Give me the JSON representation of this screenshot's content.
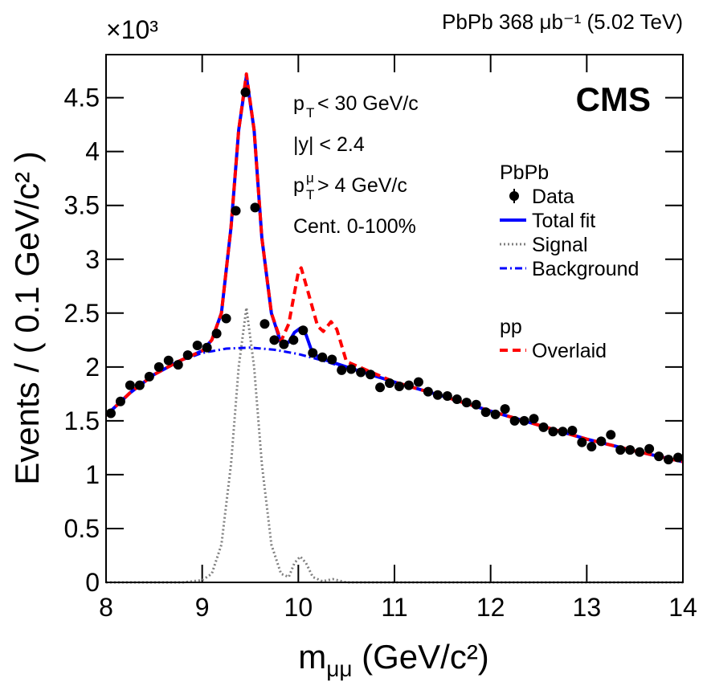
{
  "chart_data": {
    "type": "line",
    "y_multiplier": "×10³",
    "lumi_label": "PbPb 368 μb⁻¹ (5.02 TeV)",
    "experiment": "CMS",
    "ylabel": "Events / ( 0.1 GeV/c² )",
    "xlabel": {
      "main": "m",
      "sub": "μμ",
      "unit": " (GeV/c²)"
    },
    "annotations": [
      {
        "main": "p",
        "sub": "T",
        "rest": " < 30 GeV/c"
      },
      {
        "main": "|y| < 2.4"
      },
      {
        "main": "p",
        "sup": "μ",
        "sub": "T",
        "rest": " > 4 GeV/c"
      },
      {
        "main": "Cent. 0-100%"
      }
    ],
    "xlim": [
      8,
      14
    ],
    "xticks": [
      8,
      9,
      10,
      11,
      12,
      13,
      14
    ],
    "ylim": [
      0,
      4.9
    ],
    "yticks": [
      0,
      0.5,
      1,
      1.5,
      2,
      2.5,
      3,
      3.5,
      4,
      4.5
    ],
    "series": [
      {
        "name": "Data",
        "group": "PbPb",
        "kind": "points",
        "color": "#000000",
        "x": [
          8.05,
          8.15,
          8.25,
          8.35,
          8.45,
          8.55,
          8.65,
          8.75,
          8.85,
          8.95,
          9.05,
          9.15,
          9.25,
          9.35,
          9.45,
          9.55,
          9.65,
          9.75,
          9.85,
          9.95,
          10.05,
          10.15,
          10.25,
          10.35,
          10.45,
          10.55,
          10.65,
          10.75,
          10.85,
          10.95,
          11.05,
          11.15,
          11.25,
          11.35,
          11.45,
          11.55,
          11.65,
          11.75,
          11.85,
          11.95,
          12.05,
          12.15,
          12.25,
          12.35,
          12.45,
          12.55,
          12.65,
          12.75,
          12.85,
          12.95,
          13.05,
          13.15,
          13.25,
          13.35,
          13.45,
          13.55,
          13.65,
          13.75,
          13.85,
          13.95
        ],
        "values": [
          1.57,
          1.68,
          1.83,
          1.83,
          1.91,
          2.0,
          2.06,
          2.02,
          2.11,
          2.2,
          2.18,
          2.31,
          2.45,
          3.45,
          4.55,
          3.48,
          2.4,
          2.25,
          2.21,
          2.25,
          2.34,
          2.13,
          2.09,
          2.07,
          1.97,
          1.98,
          1.95,
          1.93,
          1.81,
          1.85,
          1.82,
          1.83,
          1.86,
          1.77,
          1.74,
          1.73,
          1.7,
          1.67,
          1.65,
          1.58,
          1.56,
          1.61,
          1.5,
          1.5,
          1.52,
          1.44,
          1.4,
          1.4,
          1.41,
          1.3,
          1.26,
          1.31,
          1.37,
          1.23,
          1.23,
          1.21,
          1.24,
          1.17,
          1.14,
          1.16
        ]
      },
      {
        "name": "Total fit",
        "group": "PbPb",
        "kind": "solid",
        "color": "#0000ff",
        "x": [
          8.0,
          8.25,
          8.5,
          8.75,
          9.0,
          9.1,
          9.2,
          9.3,
          9.38,
          9.46,
          9.54,
          9.62,
          9.72,
          9.82,
          9.9,
          9.96,
          10.02,
          10.08,
          10.15,
          10.3,
          10.5,
          11,
          11.5,
          12,
          12.5,
          13,
          13.5,
          14
        ],
        "values": [
          1.55,
          1.76,
          1.93,
          2.05,
          2.15,
          2.25,
          2.5,
          3.3,
          4.2,
          4.7,
          4.2,
          3.2,
          2.5,
          2.22,
          2.23,
          2.32,
          2.36,
          2.3,
          2.12,
          2.06,
          2.0,
          1.86,
          1.73,
          1.59,
          1.46,
          1.33,
          1.22,
          1.12
        ]
      },
      {
        "name": "Signal",
        "group": "PbPb",
        "kind": "dotted",
        "color": "#808080",
        "x": [
          8.0,
          8.8,
          9.0,
          9.1,
          9.2,
          9.3,
          9.38,
          9.46,
          9.54,
          9.62,
          9.72,
          9.82,
          9.9,
          9.96,
          10.02,
          10.08,
          10.15,
          10.25,
          10.36,
          10.5,
          14
        ],
        "values": [
          0,
          0,
          0.02,
          0.08,
          0.35,
          1.1,
          2.0,
          2.55,
          2.0,
          1.1,
          0.35,
          0.08,
          0.05,
          0.18,
          0.24,
          0.18,
          0.05,
          0.01,
          0.03,
          0,
          0
        ]
      },
      {
        "name": "Background",
        "group": "PbPb",
        "kind": "dashdot",
        "color": "#0000ff",
        "x": [
          8.0,
          8.25,
          8.5,
          8.75,
          9.0,
          9.25,
          9.5,
          9.75,
          10.0,
          10.25,
          10.5,
          11,
          11.5,
          12,
          12.5,
          13,
          13.5,
          14
        ],
        "values": [
          1.55,
          1.76,
          1.93,
          2.05,
          2.13,
          2.17,
          2.18,
          2.16,
          2.12,
          2.06,
          1.99,
          1.86,
          1.73,
          1.59,
          1.46,
          1.33,
          1.22,
          1.12
        ]
      },
      {
        "name": "Overlaid",
        "group": "pp",
        "kind": "dashed",
        "color": "#ff0000",
        "x": [
          8.0,
          8.25,
          8.5,
          8.75,
          9.0,
          9.1,
          9.2,
          9.3,
          9.38,
          9.46,
          9.54,
          9.62,
          9.72,
          9.82,
          9.9,
          10.0,
          10.03,
          10.1,
          10.2,
          10.26,
          10.34,
          10.4,
          10.5,
          11,
          11.5,
          12,
          12.5,
          13,
          13.5,
          14
        ],
        "values": [
          1.55,
          1.76,
          1.93,
          2.05,
          2.15,
          2.25,
          2.5,
          3.3,
          4.2,
          4.72,
          4.2,
          3.2,
          2.5,
          2.24,
          2.4,
          2.88,
          2.92,
          2.7,
          2.38,
          2.33,
          2.42,
          2.35,
          2.05,
          1.86,
          1.73,
          1.59,
          1.46,
          1.33,
          1.22,
          1.12
        ]
      }
    ]
  }
}
